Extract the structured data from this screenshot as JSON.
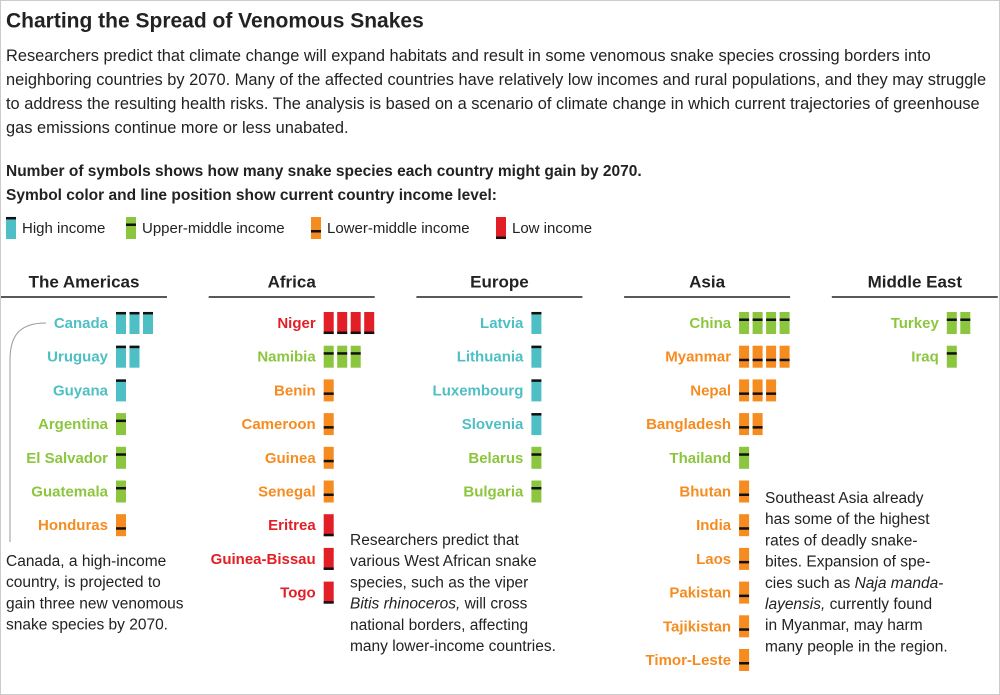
{
  "chart_data": {
    "type": "pictogram",
    "title": "Charting the Spread of Venomous Snakes",
    "subtitle": "Researchers predict that climate change will expand habitats and result in some venomous snake species crossing borders into neighboring countries by 2070. Many of the affected countries have relatively low incomes and rural populations, and they may struggle to address the resulting health risks. The analysis is based on a scenario of climate change in which current trajectories of greenhouse gas emissions continue more or less unabated.",
    "legend_heading": [
      "Number of symbols shows how many snake species each country might gain by 2070.",
      "Symbol color and line position show current country income level:"
    ],
    "income_levels": [
      {
        "name": "High income",
        "color": "#4ebfc4"
      },
      {
        "name": "Upper-middle income",
        "color": "#8cc63f"
      },
      {
        "name": "Lower-middle income",
        "color": "#f68b1f"
      },
      {
        "name": "Low income",
        "color": "#e21f26"
      }
    ],
    "regions": [
      {
        "name": "The Americas",
        "countries": [
          {
            "name": "Canada",
            "income": "High income",
            "count": 3
          },
          {
            "name": "Uruguay",
            "income": "High income",
            "count": 2
          },
          {
            "name": "Guyana",
            "income": "High income",
            "count": 1
          },
          {
            "name": "Argentina",
            "income": "Upper-middle income",
            "count": 1
          },
          {
            "name": "El Salvador",
            "income": "Upper-middle income",
            "count": 1
          },
          {
            "name": "Guatemala",
            "income": "Upper-middle income",
            "count": 1
          },
          {
            "name": "Honduras",
            "income": "Lower-middle income",
            "count": 1
          }
        ]
      },
      {
        "name": "Africa",
        "countries": [
          {
            "name": "Niger",
            "income": "Low income",
            "count": 4
          },
          {
            "name": "Namibia",
            "income": "Upper-middle income",
            "count": 3
          },
          {
            "name": "Benin",
            "income": "Lower-middle income",
            "count": 1
          },
          {
            "name": "Cameroon",
            "income": "Lower-middle income",
            "count": 1
          },
          {
            "name": "Guinea",
            "income": "Lower-middle income",
            "count": 1
          },
          {
            "name": "Senegal",
            "income": "Lower-middle income",
            "count": 1
          },
          {
            "name": "Eritrea",
            "income": "Low income",
            "count": 1
          },
          {
            "name": "Guinea-Bissau",
            "income": "Low income",
            "count": 1
          },
          {
            "name": "Togo",
            "income": "Low income",
            "count": 1
          }
        ]
      },
      {
        "name": "Europe",
        "countries": [
          {
            "name": "Latvia",
            "income": "High income",
            "count": 1
          },
          {
            "name": "Lithuania",
            "income": "High income",
            "count": 1
          },
          {
            "name": "Luxembourg",
            "income": "High income",
            "count": 1
          },
          {
            "name": "Slovenia",
            "income": "High income",
            "count": 1
          },
          {
            "name": "Belarus",
            "income": "Upper-middle income",
            "count": 1
          },
          {
            "name": "Bulgaria",
            "income": "Upper-middle income",
            "count": 1
          }
        ]
      },
      {
        "name": "Asia",
        "countries": [
          {
            "name": "China",
            "income": "Upper-middle income",
            "count": 4
          },
          {
            "name": "Myanmar",
            "income": "Lower-middle income",
            "count": 4
          },
          {
            "name": "Nepal",
            "income": "Lower-middle income",
            "count": 3
          },
          {
            "name": "Bangladesh",
            "income": "Lower-middle income",
            "count": 2
          },
          {
            "name": "Thailand",
            "income": "Upper-middle income",
            "count": 1
          },
          {
            "name": "Bhutan",
            "income": "Lower-middle income",
            "count": 1
          },
          {
            "name": "India",
            "income": "Lower-middle income",
            "count": 1
          },
          {
            "name": "Laos",
            "income": "Lower-middle income",
            "count": 1
          },
          {
            "name": "Pakistan",
            "income": "Lower-middle income",
            "count": 1
          },
          {
            "name": "Tajikistan",
            "income": "Lower-middle income",
            "count": 1
          },
          {
            "name": "Timor-Leste",
            "income": "Lower-middle income",
            "count": 1
          }
        ]
      },
      {
        "name": "Middle East",
        "countries": [
          {
            "name": "Turkey",
            "income": "Upper-middle income",
            "count": 2
          },
          {
            "name": "Iraq",
            "income": "Upper-middle income",
            "count": 1
          }
        ]
      }
    ],
    "annotations": [
      {
        "lines": [
          [
            "Canada, a high-income"
          ],
          [
            "country, is projected to"
          ],
          [
            "gain three new venomous"
          ],
          [
            "snake species by 2070."
          ]
        ]
      },
      {
        "lines": [
          [
            "Researchers predict that"
          ],
          [
            "various West African snake"
          ],
          [
            "species, such as the viper"
          ],
          [
            {
              "text": "Bitis rhinoceros,",
              "italic": true
            },
            " will cross"
          ],
          [
            "national borders, affecting"
          ],
          [
            "many lower-income countries."
          ]
        ]
      },
      {
        "lines": [
          [
            "Southeast Asia already"
          ],
          [
            "has some of the highest"
          ],
          [
            "rates of deadly snake-"
          ],
          [
            "bites. Expansion of spe-"
          ],
          [
            "cies such as ",
            {
              "text": "Naja manda-",
              "italic": true
            }
          ],
          [
            {
              "text": "layensis,",
              "italic": true
            },
            " currently found"
          ],
          [
            "in Myanmar, may harm"
          ],
          [
            "many people in the region."
          ]
        ]
      }
    ]
  }
}
